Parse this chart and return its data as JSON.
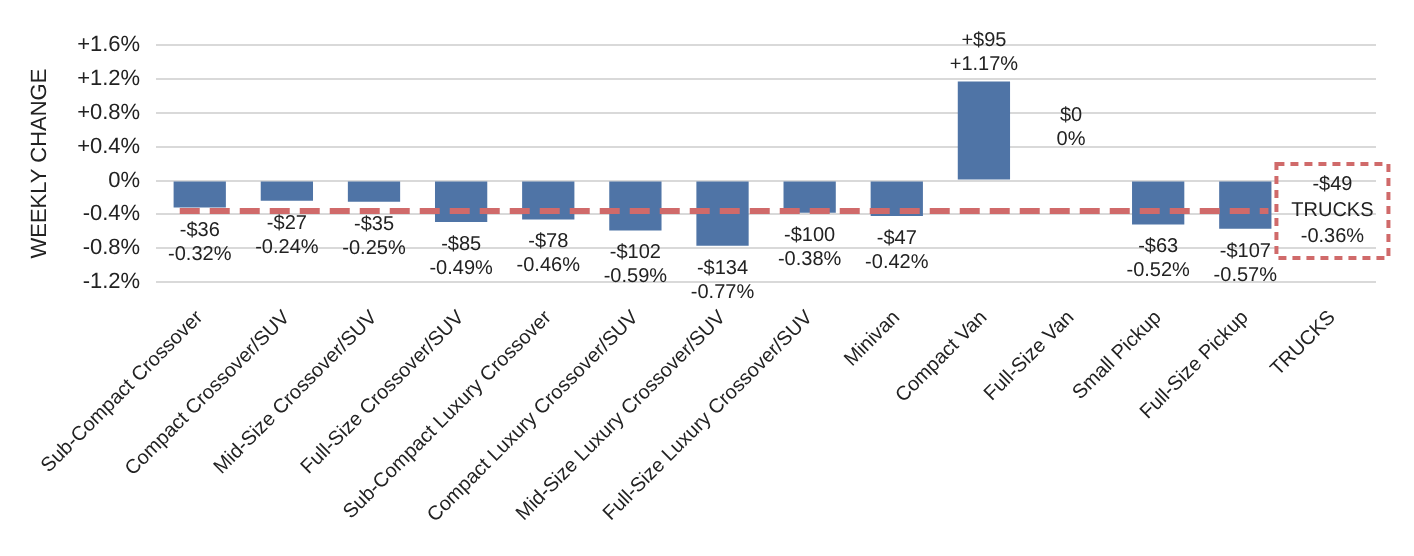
{
  "chart_data": {
    "type": "bar",
    "ylabel": "WEEKLY CHANGE",
    "categories": [
      "Sub-Compact Crossover",
      "Compact Crossover/SUV",
      "Mid-Size Crossover/SUV",
      "Full-Size Crossover/SUV",
      "Sub-Compact Luxury Crossover",
      "Compact Luxury Crossover/SUV",
      "Mid-Size Luxury Crossover/SUV",
      "Full-Size Luxury Crossover/SUV",
      "Minivan",
      "Compact Van",
      "Full-Size Van",
      "Small Pickup",
      "Full-Size Pickup",
      "TRUCKS"
    ],
    "values": [
      -0.32,
      -0.24,
      -0.25,
      -0.49,
      -0.46,
      -0.59,
      -0.77,
      -0.38,
      -0.42,
      1.17,
      0,
      -0.52,
      -0.57,
      null
    ],
    "value_labels": [
      "-$36\n-0.32%",
      "-$27\n-0.24%",
      "-$35\n-0.25%",
      "-$85\n-0.49%",
      "-$78\n-0.46%",
      "-$102\n-0.59%",
      "-$134\n-0.77%",
      "-$100\n-0.38%",
      "-$47\n-0.42%",
      "+$95\n+1.17%",
      "$0\n0%",
      "-$63\n-0.52%",
      "-$107\n-0.57%",
      null
    ],
    "color": "#4f74a6",
    "ylim": [
      -1.2,
      1.6
    ],
    "yticks": [
      {
        "value": 1.6,
        "label": "+1.6%"
      },
      {
        "value": 1.2,
        "label": "+1.2%"
      },
      {
        "value": 0.8,
        "label": "+0.8%"
      },
      {
        "value": 0.4,
        "label": "+0.4%"
      },
      {
        "value": 0,
        "label": "0%"
      },
      {
        "value": -0.4,
        "label": "-0.4%"
      },
      {
        "value": -0.8,
        "label": "-0.8%"
      },
      {
        "value": -1.2,
        "label": "-1.2%"
      }
    ],
    "ref_lines": [
      {
        "axis": "y",
        "value": -0.36,
        "label": "-$49\nTRUCKS\n-0.36%",
        "color": "#d06a6a",
        "line_style": "dashed"
      }
    ],
    "grid": "y",
    "legend": false
  }
}
